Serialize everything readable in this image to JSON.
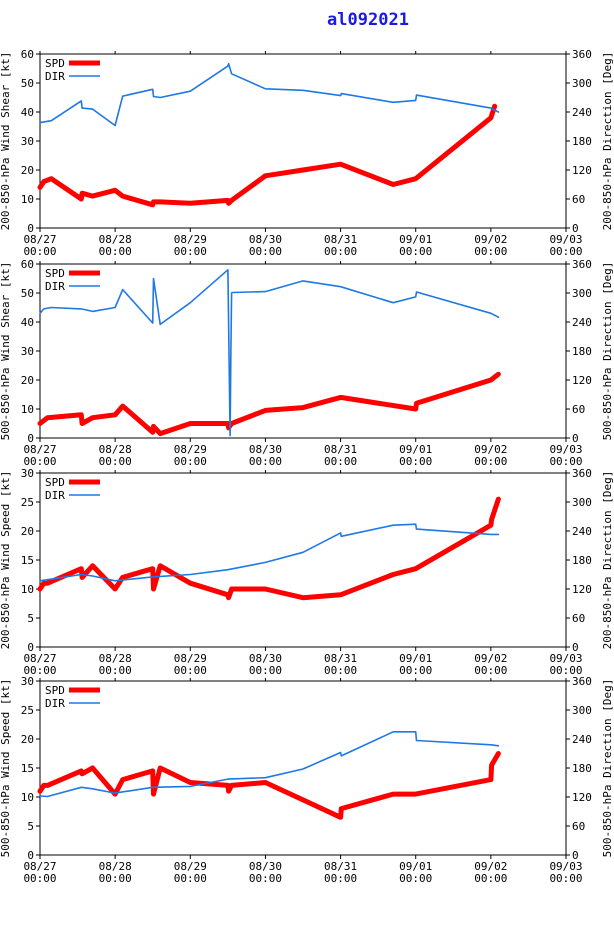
{
  "title": "al092021",
  "colors": {
    "spd": "#ff0000",
    "dir": "#1e78e6",
    "axis": "#000000",
    "title": "#1a1ae6"
  },
  "legend": {
    "spd": "SPD",
    "dir": "DIR"
  },
  "x_ticks": [
    {
      "d": "08/27",
      "t": "00:00"
    },
    {
      "d": "08/28",
      "t": "00:00"
    },
    {
      "d": "08/29",
      "t": "00:00"
    },
    {
      "d": "08/30",
      "t": "00:00"
    },
    {
      "d": "08/31",
      "t": "00:00"
    },
    {
      "d": "09/01",
      "t": "00:00"
    },
    {
      "d": "09/02",
      "t": "00:00"
    },
    {
      "d": "09/03",
      "t": "00:00"
    }
  ],
  "chart_data": [
    {
      "type": "line",
      "ylabel": "200-850-hPa Wind Shear [kt]",
      "y2label": "200-850-hPa Direction [Deg]",
      "ylim": [
        0,
        60
      ],
      "yticks": [
        0,
        10,
        20,
        30,
        40,
        50,
        60
      ],
      "y2lim": [
        0,
        360
      ],
      "y2ticks": [
        0,
        60,
        120,
        180,
        240,
        300,
        360
      ],
      "xlim_days": [
        0,
        7
      ],
      "series": [
        {
          "name": "SPD",
          "x": [
            0.0,
            0.05,
            0.15,
            0.55,
            0.56,
            0.7,
            1.0,
            1.1,
            1.5,
            1.51,
            1.6,
            2.0,
            2.5,
            2.51,
            2.55,
            3.0,
            3.5,
            4.0,
            4.7,
            5.0,
            6.0,
            6.05
          ],
          "values": [
            14,
            16,
            17,
            10,
            12,
            11,
            13,
            11,
            8,
            9,
            9,
            8.5,
            9.5,
            8.5,
            9.5,
            18,
            20,
            22,
            15,
            17,
            38,
            42
          ]
        },
        {
          "name": "DIR",
          "x": [
            0.0,
            0.15,
            0.55,
            0.56,
            0.7,
            1.0,
            1.1,
            1.5,
            1.51,
            1.6,
            2.0,
            2.5,
            2.51,
            2.55,
            3.0,
            3.5,
            4.0,
            4.01,
            4.7,
            5.0,
            5.01,
            6.0,
            6.1
          ],
          "values": [
            218,
            222,
            263,
            248,
            246,
            212,
            273,
            287,
            272,
            270,
            283,
            335,
            340,
            319,
            288,
            285,
            274,
            278,
            260,
            264,
            275,
            248,
            240
          ]
        }
      ]
    },
    {
      "type": "line",
      "ylabel": "500-850-hPa Wind Shear [kt]",
      "y2label": "500-850-hPa Direction [Deg]",
      "ylim": [
        0,
        60
      ],
      "yticks": [
        0,
        10,
        20,
        30,
        40,
        50,
        60
      ],
      "y2lim": [
        0,
        360
      ],
      "y2ticks": [
        0,
        60,
        120,
        180,
        240,
        300,
        360
      ],
      "xlim_days": [
        0,
        7
      ],
      "series": [
        {
          "name": "SPD",
          "x": [
            0.0,
            0.1,
            0.55,
            0.56,
            0.7,
            1.0,
            1.1,
            1.5,
            1.51,
            1.6,
            2.0,
            2.5,
            2.51,
            2.55,
            3.0,
            3.5,
            4.0,
            5.0,
            5.01,
            6.0,
            6.1
          ],
          "values": [
            5,
            7,
            8,
            5,
            7,
            8,
            11,
            2,
            4,
            1.5,
            5,
            5,
            3.5,
            5,
            9.5,
            10.5,
            14,
            10,
            12,
            20,
            22
          ]
        },
        {
          "name": "DIR",
          "x": [
            0.0,
            0.05,
            0.15,
            0.55,
            0.7,
            1.0,
            1.1,
            1.5,
            1.51,
            1.6,
            2.0,
            2.5,
            2.53,
            2.54,
            2.55,
            2.56,
            3.0,
            3.5,
            4.0,
            4.7,
            5.0,
            5.01,
            6.0,
            6.1
          ],
          "values": [
            258,
            267,
            270,
            267,
            262,
            270,
            307,
            238,
            330,
            235,
            280,
            348,
            5,
            180,
            300,
            301,
            303,
            325,
            313,
            280,
            292,
            302,
            258,
            250
          ]
        }
      ]
    },
    {
      "type": "line",
      "ylabel": "200-850-hPa Wind Speed [kt]",
      "y2label": "200-850-hPa Direction [Deg]",
      "ylim": [
        0,
        30
      ],
      "yticks": [
        0,
        5,
        10,
        15,
        20,
        25,
        30
      ],
      "y2lim": [
        0,
        360
      ],
      "y2ticks": [
        0,
        60,
        120,
        180,
        240,
        300,
        360
      ],
      "xlim_days": [
        0,
        7
      ],
      "series": [
        {
          "name": "SPD",
          "x": [
            0.0,
            0.05,
            0.1,
            0.55,
            0.56,
            0.7,
            1.0,
            1.1,
            1.5,
            1.51,
            1.6,
            2.0,
            2.5,
            2.51,
            2.55,
            3.0,
            3.5,
            4.0,
            4.7,
            5.0,
            6.0,
            6.01,
            6.1
          ],
          "values": [
            10,
            11,
            11,
            13.5,
            12,
            14,
            10,
            12,
            13.5,
            10,
            14,
            11,
            9,
            8.5,
            10,
            10,
            8.5,
            9,
            12.5,
            13.5,
            21,
            22,
            25.5
          ]
        },
        {
          "name": "DIR",
          "x": [
            0.0,
            0.55,
            0.7,
            1.0,
            1.5,
            2.0,
            2.5,
            3.0,
            3.5,
            4.0,
            4.01,
            4.7,
            5.0,
            5.01,
            6.0,
            6.1
          ],
          "values": [
            137,
            150,
            147,
            137,
            145,
            150,
            160,
            175,
            196,
            236,
            229,
            252,
            254,
            244,
            233,
            233
          ]
        }
      ]
    },
    {
      "type": "line",
      "ylabel": "500-850-hPa Wind Speed [kt]",
      "y2label": "500-850-hPa Direction [Deg]",
      "ylim": [
        0,
        30
      ],
      "yticks": [
        0,
        5,
        10,
        15,
        20,
        25,
        30
      ],
      "y2lim": [
        0,
        360
      ],
      "y2ticks": [
        0,
        60,
        120,
        180,
        240,
        300,
        360
      ],
      "xlim_days": [
        0,
        7
      ],
      "series": [
        {
          "name": "SPD",
          "x": [
            0.0,
            0.05,
            0.1,
            0.55,
            0.56,
            0.7,
            1.0,
            1.1,
            1.5,
            1.51,
            1.6,
            2.0,
            2.5,
            2.51,
            2.55,
            3.0,
            3.5,
            4.0,
            4.01,
            4.7,
            5.0,
            6.0,
            6.01,
            6.1
          ],
          "values": [
            11,
            12,
            12,
            14.5,
            14,
            15,
            10.5,
            13,
            14.5,
            10.5,
            15,
            12.5,
            12,
            11,
            12,
            12.5,
            9.5,
            6.5,
            8,
            10.5,
            10.5,
            13,
            15.5,
            17.5
          ]
        },
        {
          "name": "DIR",
          "x": [
            0.0,
            0.1,
            0.55,
            0.7,
            1.0,
            1.5,
            2.0,
            2.5,
            3.0,
            3.5,
            4.0,
            4.01,
            4.7,
            5.0,
            5.01,
            6.0,
            6.1
          ],
          "values": [
            122,
            121,
            140,
            137,
            128,
            140,
            142,
            157,
            160,
            178,
            212,
            205,
            255,
            255,
            237,
            228,
            226
          ]
        }
      ]
    }
  ]
}
